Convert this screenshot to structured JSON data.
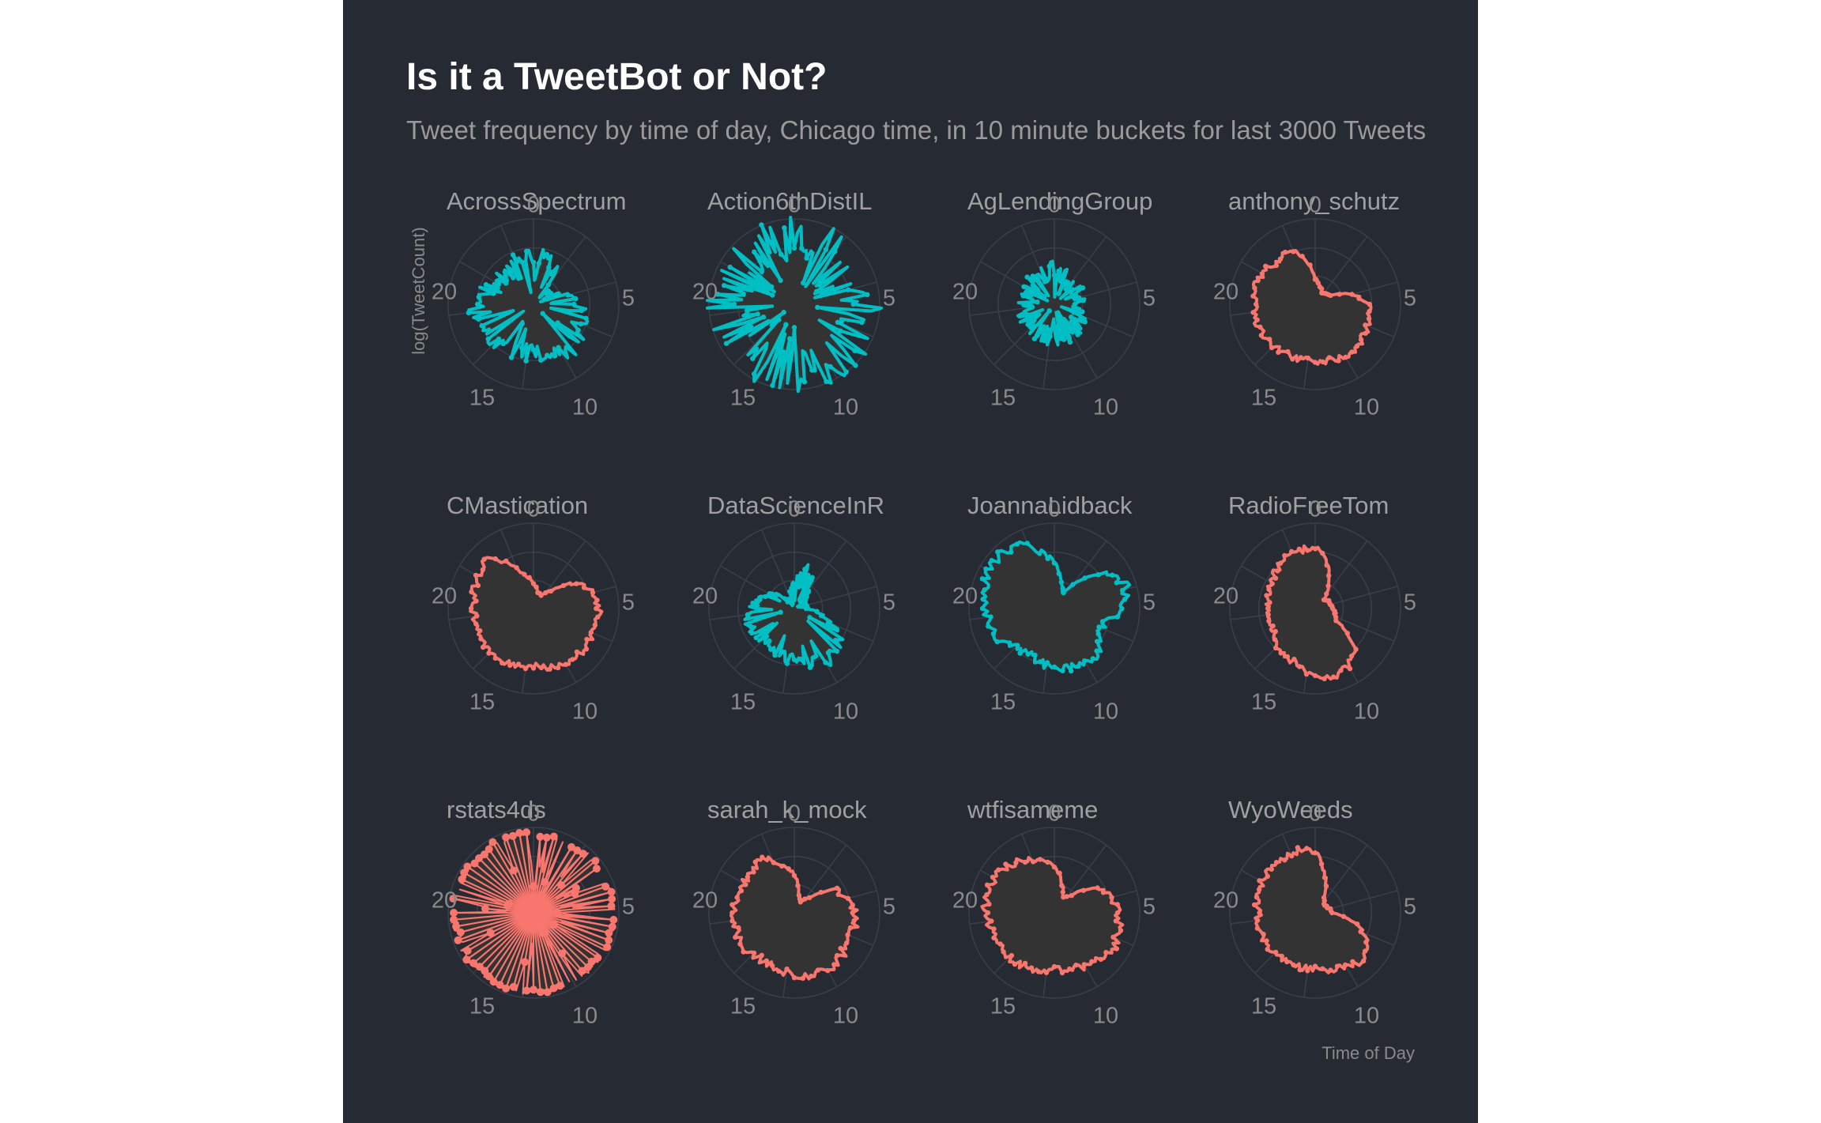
{
  "header": {
    "title": "Is it a TweetBot or Not?",
    "subtitle": "Tweet frequency by time of day, Chicago time, in 10 minute buckets for last 3000 Tweets"
  },
  "colors": {
    "background": "#262a33",
    "teal": "#00bfc4",
    "salmon": "#f8766d",
    "fill": "#333333",
    "grid": "#3a3e48"
  },
  "chart_data": {
    "type": "polar-line",
    "xlabel": "Time of Day",
    "ylabel": "log(TweetCount)",
    "x_ticks": [
      "0",
      "5",
      "10",
      "15",
      "20"
    ],
    "x_range": [
      0,
      24
    ],
    "bucket_minutes": 10,
    "grid": true,
    "facets": [
      {
        "name": "AcrossSpectrum",
        "color": "teal",
        "profile": [
          [
            0,
            0.55
          ],
          [
            1,
            0.6
          ],
          [
            2,
            0.5
          ],
          [
            3,
            0.2
          ],
          [
            4,
            0.25
          ],
          [
            5,
            0.45
          ],
          [
            6,
            0.5
          ],
          [
            7,
            0.55
          ],
          [
            8,
            0.6
          ],
          [
            9,
            0.65
          ],
          [
            10,
            0.68
          ],
          [
            11,
            0.62
          ],
          [
            12,
            0.58
          ],
          [
            13,
            0.55
          ],
          [
            14,
            0.62
          ],
          [
            15,
            0.66
          ],
          [
            16,
            0.6
          ],
          [
            17,
            0.62
          ],
          [
            18,
            0.66
          ],
          [
            19,
            0.6
          ],
          [
            20,
            0.52
          ],
          [
            21,
            0.45
          ],
          [
            22,
            0.5
          ],
          [
            23,
            0.55
          ],
          [
            24,
            0.55
          ]
        ],
        "noise": 0.2,
        "spiky": true,
        "seed": 11
      },
      {
        "name": "Action6thDistIL",
        "color": "teal",
        "profile": [
          [
            0,
            0.8
          ],
          [
            2,
            0.78
          ],
          [
            4,
            0.72
          ],
          [
            6,
            0.8
          ],
          [
            8,
            0.82
          ],
          [
            10,
            0.85
          ],
          [
            12,
            0.8
          ],
          [
            14,
            0.78
          ],
          [
            16,
            0.82
          ],
          [
            18,
            0.8
          ],
          [
            20,
            0.78
          ],
          [
            22,
            0.8
          ],
          [
            24,
            0.8
          ]
        ],
        "noise": 0.35,
        "spiky": true,
        "seed": 23
      },
      {
        "name": "AgLendingGroup",
        "color": "teal",
        "profile": [
          [
            0,
            0.4
          ],
          [
            3,
            0.3
          ],
          [
            6,
            0.3
          ],
          [
            9,
            0.35
          ],
          [
            12,
            0.4
          ],
          [
            15,
            0.35
          ],
          [
            18,
            0.35
          ],
          [
            21,
            0.35
          ],
          [
            24,
            0.4
          ]
        ],
        "noise": 0.3,
        "spiky": true,
        "seed": 37
      },
      {
        "name": "anthony_schutz",
        "color": "salmon",
        "profile": [
          [
            0,
            0.3
          ],
          [
            2,
            0.15
          ],
          [
            4,
            0.2
          ],
          [
            5,
            0.45
          ],
          [
            6,
            0.62
          ],
          [
            8,
            0.68
          ],
          [
            10,
            0.7
          ],
          [
            12,
            0.66
          ],
          [
            14,
            0.68
          ],
          [
            16,
            0.7
          ],
          [
            18,
            0.72
          ],
          [
            20,
            0.72
          ],
          [
            21,
            0.68
          ],
          [
            22,
            0.7
          ],
          [
            23,
            0.6
          ],
          [
            24,
            0.3
          ]
        ],
        "noise": 0.06,
        "spiky": false,
        "seed": 41
      },
      {
        "name": "CMastication",
        "color": "salmon",
        "profile": [
          [
            0,
            0.3
          ],
          [
            1,
            0.2
          ],
          [
            2,
            0.18
          ],
          [
            3,
            0.3
          ],
          [
            4,
            0.6
          ],
          [
            5,
            0.72
          ],
          [
            6,
            0.78
          ],
          [
            8,
            0.76
          ],
          [
            10,
            0.76
          ],
          [
            12,
            0.66
          ],
          [
            14,
            0.72
          ],
          [
            16,
            0.72
          ],
          [
            18,
            0.7
          ],
          [
            20,
            0.75
          ],
          [
            21,
            0.8
          ],
          [
            22,
            0.62
          ],
          [
            23,
            0.4
          ],
          [
            24,
            0.3
          ]
        ],
        "noise": 0.06,
        "spiky": false,
        "seed": 53
      },
      {
        "name": "DataScienceInR",
        "color": "teal",
        "profile": [
          [
            0,
            0.3
          ],
          [
            1,
            0.5
          ],
          [
            2,
            0.4
          ],
          [
            3,
            0.25
          ],
          [
            4,
            0.15
          ],
          [
            6,
            0.15
          ],
          [
            7,
            0.35
          ],
          [
            8,
            0.6
          ],
          [
            9,
            0.7
          ],
          [
            10,
            0.72
          ],
          [
            11,
            0.66
          ],
          [
            12,
            0.6
          ],
          [
            14,
            0.55
          ],
          [
            15,
            0.52
          ],
          [
            16,
            0.58
          ],
          [
            17,
            0.55
          ],
          [
            18,
            0.48
          ],
          [
            20,
            0.35
          ],
          [
            21,
            0.2
          ],
          [
            22,
            0.1
          ],
          [
            23,
            0.2
          ],
          [
            24,
            0.3
          ]
        ],
        "noise": 0.12,
        "spiky": true,
        "seed": 67
      },
      {
        "name": "JoannaLidback",
        "color": "teal",
        "profile": [
          [
            0,
            0.55
          ],
          [
            1,
            0.3
          ],
          [
            2,
            0.2
          ],
          [
            3,
            0.5
          ],
          [
            4,
            0.8
          ],
          [
            5,
            0.88
          ],
          [
            6,
            0.8
          ],
          [
            7,
            0.6
          ],
          [
            8,
            0.6
          ],
          [
            9,
            0.72
          ],
          [
            10,
            0.75
          ],
          [
            11,
            0.72
          ],
          [
            12,
            0.7
          ],
          [
            14,
            0.6
          ],
          [
            15,
            0.65
          ],
          [
            16,
            0.75
          ],
          [
            18,
            0.8
          ],
          [
            20,
            0.88
          ],
          [
            21,
            0.92
          ],
          [
            22,
            0.85
          ],
          [
            23,
            0.7
          ],
          [
            24,
            0.55
          ]
        ],
        "noise": 0.07,
        "spiky": false,
        "seed": 71
      },
      {
        "name": "RadioFreeTom",
        "color": "salmon",
        "profile": [
          [
            0,
            0.72
          ],
          [
            1,
            0.55
          ],
          [
            2,
            0.3
          ],
          [
            3,
            0.15
          ],
          [
            4,
            0.18
          ],
          [
            6,
            0.2
          ],
          [
            8,
            0.3
          ],
          [
            9,
            0.65
          ],
          [
            10,
            0.78
          ],
          [
            11,
            0.82
          ],
          [
            12,
            0.78
          ],
          [
            13,
            0.7
          ],
          [
            14,
            0.66
          ],
          [
            15,
            0.62
          ],
          [
            16,
            0.55
          ],
          [
            18,
            0.55
          ],
          [
            20,
            0.6
          ],
          [
            22,
            0.68
          ],
          [
            24,
            0.72
          ]
        ],
        "noise": 0.06,
        "spiky": false,
        "seed": 83
      },
      {
        "name": "rstats4ds",
        "color": "salmon",
        "profile": [
          [
            0,
            0.92
          ],
          [
            6,
            0.92
          ],
          [
            12,
            0.92
          ],
          [
            18,
            0.92
          ],
          [
            24,
            0.92
          ]
        ],
        "noise": 0.04,
        "spiky": true,
        "lollipop": true,
        "seed": 97
      },
      {
        "name": "sarah_k_mock",
        "color": "salmon",
        "profile": [
          [
            0,
            0.45
          ],
          [
            1,
            0.2
          ],
          [
            2,
            0.15
          ],
          [
            3,
            0.25
          ],
          [
            4,
            0.55
          ],
          [
            6,
            0.72
          ],
          [
            8,
            0.72
          ],
          [
            10,
            0.78
          ],
          [
            12,
            0.72
          ],
          [
            14,
            0.66
          ],
          [
            16,
            0.72
          ],
          [
            18,
            0.72
          ],
          [
            20,
            0.68
          ],
          [
            22,
            0.72
          ],
          [
            23,
            0.6
          ],
          [
            24,
            0.45
          ]
        ],
        "noise": 0.07,
        "spiky": false,
        "seed": 101
      },
      {
        "name": "wtfisameme",
        "color": "salmon",
        "profile": [
          [
            0,
            0.55
          ],
          [
            1,
            0.35
          ],
          [
            2,
            0.2
          ],
          [
            3,
            0.3
          ],
          [
            4,
            0.6
          ],
          [
            6,
            0.75
          ],
          [
            8,
            0.8
          ],
          [
            10,
            0.72
          ],
          [
            12,
            0.66
          ],
          [
            14,
            0.72
          ],
          [
            16,
            0.76
          ],
          [
            18,
            0.8
          ],
          [
            20,
            0.82
          ],
          [
            22,
            0.72
          ],
          [
            24,
            0.55
          ]
        ],
        "noise": 0.06,
        "spiky": false,
        "seed": 113
      },
      {
        "name": "WyoWeeds",
        "color": "salmon",
        "profile": [
          [
            0,
            0.72
          ],
          [
            1,
            0.45
          ],
          [
            2,
            0.2
          ],
          [
            3,
            0.15
          ],
          [
            4,
            0.15
          ],
          [
            6,
            0.2
          ],
          [
            7,
            0.5
          ],
          [
            8,
            0.72
          ],
          [
            9,
            0.78
          ],
          [
            10,
            0.72
          ],
          [
            12,
            0.66
          ],
          [
            14,
            0.66
          ],
          [
            16,
            0.7
          ],
          [
            18,
            0.66
          ],
          [
            19,
            0.7
          ],
          [
            20,
            0.72
          ],
          [
            21,
            0.74
          ],
          [
            22,
            0.74
          ],
          [
            23,
            0.76
          ],
          [
            24,
            0.72
          ]
        ],
        "noise": 0.06,
        "spiky": false,
        "seed": 127
      }
    ]
  }
}
